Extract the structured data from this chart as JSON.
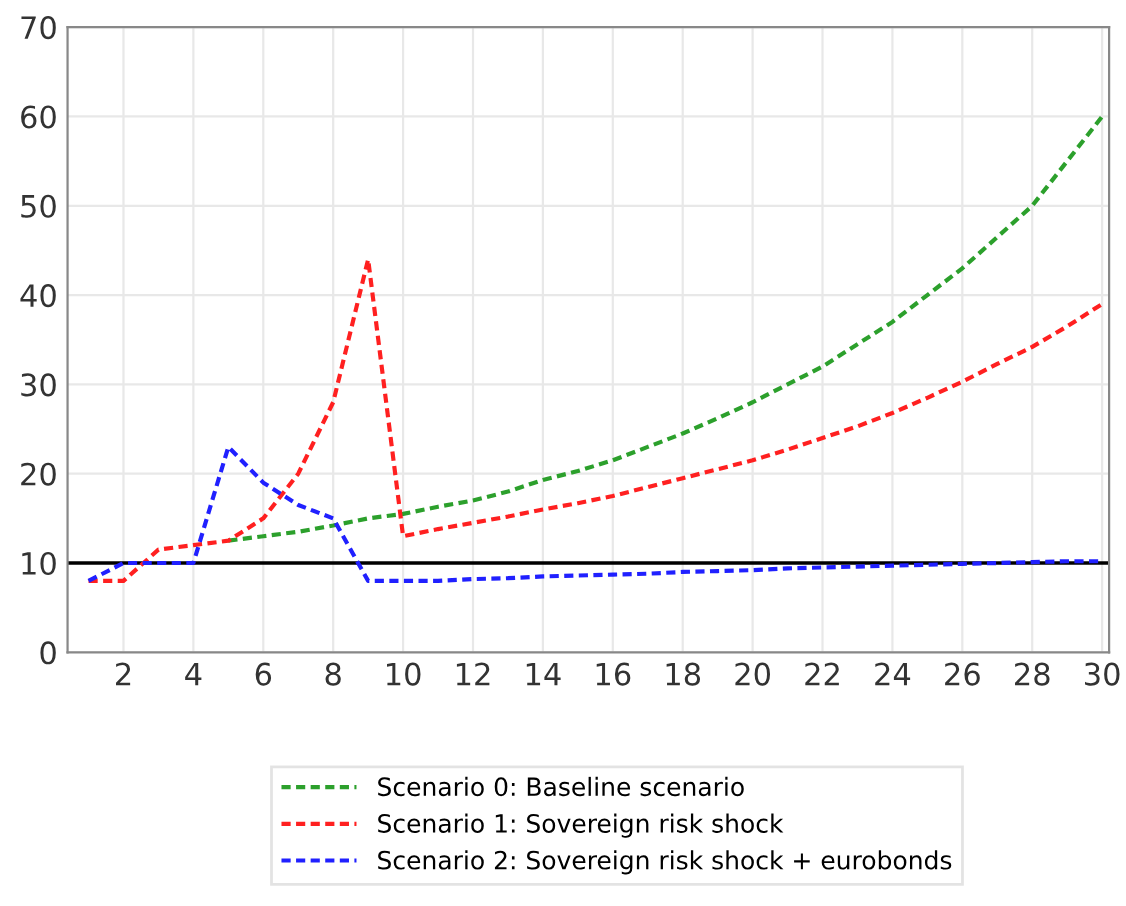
{
  "chart_data": {
    "type": "line",
    "x": [
      1,
      2,
      3,
      4,
      5,
      6,
      7,
      8,
      9,
      10,
      11,
      12,
      13,
      14,
      15,
      16,
      17,
      18,
      19,
      20,
      21,
      22,
      23,
      24,
      25,
      26,
      27,
      28,
      29,
      30
    ],
    "series": [
      {
        "name": "Scenario 0: Baseline scenario",
        "color": "#2ca02c",
        "values": [
          null,
          null,
          null,
          null,
          12.5,
          13,
          13.5,
          14.2,
          15,
          15.5,
          16.3,
          17,
          18,
          19.3,
          20.3,
          21.5,
          23,
          24.5,
          26.2,
          28,
          30,
          32,
          34.5,
          37,
          40,
          43,
          46.5,
          50,
          55,
          60
        ]
      },
      {
        "name": "Scenario 1: Sovereign risk shock",
        "color": "#ff2020",
        "values": [
          8,
          8,
          11.5,
          12,
          12.5,
          15,
          20,
          28,
          44,
          13,
          13.8,
          14.5,
          15.2,
          16,
          16.7,
          17.5,
          18.5,
          19.5,
          20.5,
          21.5,
          22.7,
          24,
          25.3,
          26.8,
          28.5,
          30.3,
          32.3,
          34.2,
          36.5,
          39
        ]
      },
      {
        "name": "Scenario 2: Sovereign risk shock + eurobonds",
        "color": "#2020ff",
        "values": [
          8,
          10,
          10,
          10,
          23,
          19,
          16.5,
          15,
          8,
          8,
          8,
          8.2,
          8.3,
          8.5,
          8.6,
          8.7,
          8.8,
          9,
          9.1,
          9.2,
          9.4,
          9.5,
          9.6,
          9.7,
          9.8,
          9.9,
          10,
          10.1,
          10.2,
          10.2
        ]
      }
    ],
    "xlim": [
      0.4,
      30.2
    ],
    "xticks": [
      2,
      4,
      6,
      8,
      10,
      12,
      14,
      16,
      18,
      20,
      22,
      24,
      26,
      28,
      30
    ],
    "ylim": [
      0,
      70
    ],
    "yticks": [
      0,
      10,
      20,
      30,
      40,
      50,
      60,
      70
    ],
    "ref_lines": [
      {
        "axis": "y",
        "value": 10,
        "color": "#000000"
      }
    ],
    "grid": true,
    "legend": "bottom",
    "line_style": "dashed",
    "marker": "none"
  }
}
